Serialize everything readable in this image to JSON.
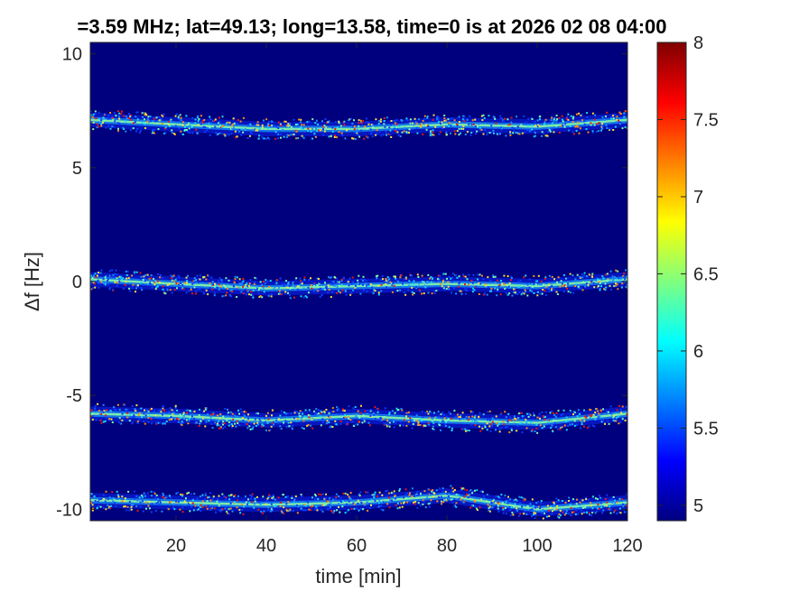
{
  "chart_data": {
    "type": "heatmap",
    "title": "=3.59 MHz;  lat=49.13; long=13.58, time=0 is at 2026 02 08 04:00",
    "xlabel": "time [min]",
    "ylabel": "Δf [Hz]",
    "xlim": [
      1,
      120
    ],
    "ylim": [
      -10.5,
      10.5
    ],
    "x_ticks": [
      "20",
      "40",
      "60",
      "80",
      "100",
      "120"
    ],
    "y_ticks": [
      "10",
      "5",
      "0",
      "-5",
      "-10"
    ],
    "colormap": "jet",
    "background_color": "#00007f",
    "colorbar": {
      "range": [
        4.9,
        8
      ],
      "ticks": [
        "8",
        "7.5",
        "7",
        "6.5",
        "6",
        "5.5",
        "5"
      ]
    },
    "bands": [
      {
        "name": "",
        "x": [
          1,
          20,
          40,
          60,
          80,
          100,
          120
        ],
        "y": [
          7.1,
          6.9,
          6.7,
          6.7,
          6.9,
          6.8,
          7.1
        ]
      },
      {
        "name": "",
        "x": [
          1,
          20,
          40,
          60,
          80,
          100,
          120
        ],
        "y": [
          0.1,
          -0.1,
          -0.3,
          -0.2,
          -0.1,
          -0.2,
          0.1
        ]
      },
      {
        "name": "",
        "x": [
          1,
          20,
          40,
          60,
          80,
          100,
          120
        ],
        "y": [
          -5.8,
          -5.9,
          -6.1,
          -5.9,
          -6.1,
          -6.2,
          -5.8
        ]
      },
      {
        "name": "",
        "x": [
          1,
          20,
          40,
          60,
          80,
          100,
          120
        ],
        "y": [
          -9.6,
          -9.7,
          -9.8,
          -9.7,
          -9.4,
          -10.0,
          -9.7
        ]
      }
    ]
  }
}
